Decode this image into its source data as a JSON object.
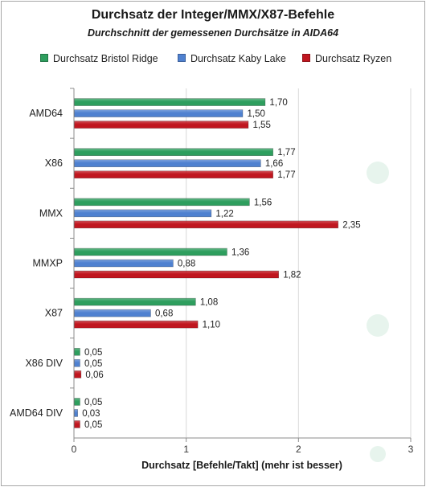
{
  "chart_data": {
    "type": "bar",
    "orientation": "horizontal",
    "title": "Durchsatz der Integer/MMX/X87-Befehle",
    "subtitle": "Durchschnitt der gemessenen Durchsätze in AIDA64",
    "xlabel": "Durchsatz [Befehle/Takt] (mehr ist besser)",
    "ylabel": "",
    "xlim": [
      0,
      3
    ],
    "xticks": [
      "0",
      "1",
      "2",
      "3"
    ],
    "grid": true,
    "legend_position": "top",
    "categories": [
      "AMD64",
      "X86",
      "MMX",
      "MMXP",
      "X87",
      "X86 DIV",
      "AMD64 DIV"
    ],
    "series": [
      {
        "name": "Durchsatz Bristol Ridge",
        "color": "#2e9e5e",
        "values": [
          1.7,
          1.77,
          1.56,
          1.36,
          1.08,
          0.05,
          0.05
        ],
        "labels": [
          "1,70",
          "1,77",
          "1,56",
          "1,36",
          "1,08",
          "0,05",
          "0,05"
        ]
      },
      {
        "name": "Durchsatz Kaby Lake",
        "color": "#4f81d0",
        "values": [
          1.5,
          1.66,
          1.22,
          0.88,
          0.68,
          0.05,
          0.03
        ],
        "labels": [
          "1,50",
          "1,66",
          "1,22",
          "0,88",
          "0,68",
          "0,05",
          "0,03"
        ]
      },
      {
        "name": "Durchsatz Ryzen",
        "color": "#c0161f",
        "values": [
          1.55,
          1.77,
          2.35,
          1.82,
          1.1,
          0.06,
          0.05
        ],
        "labels": [
          "1,55",
          "1,77",
          "2,35",
          "1,82",
          "1,10",
          "0,06",
          "0,05"
        ]
      }
    ]
  }
}
